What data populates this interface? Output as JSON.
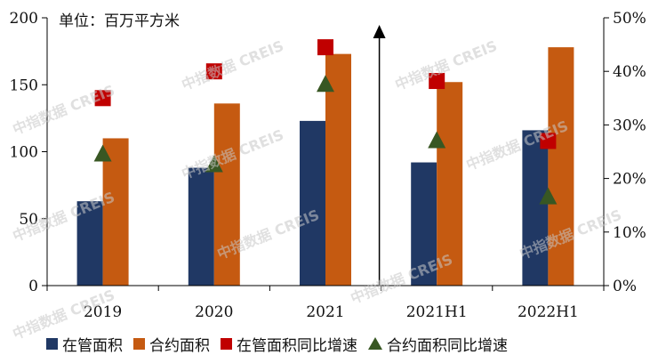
{
  "chart_data": {
    "type": "bar",
    "unit_label": "单位：百万平方米",
    "categories": [
      "2019",
      "2020",
      "2021",
      "2021H1",
      "2022H1"
    ],
    "series": [
      {
        "name": "在管面积",
        "kind": "bar",
        "axis": "left",
        "color": "#203864",
        "values": [
          63,
          88,
          123,
          92,
          116
        ]
      },
      {
        "name": "合约面积",
        "kind": "bar",
        "axis": "left",
        "color": "#C55A11",
        "values": [
          110,
          136,
          173,
          152,
          178
        ]
      },
      {
        "name": "在管面积同比增速",
        "kind": "marker-square",
        "axis": "right",
        "color": "#C00000",
        "values": [
          0.35,
          0.4,
          0.445,
          0.382,
          0.27
        ]
      },
      {
        "name": "合约面积同比增速",
        "kind": "marker-triangle",
        "axis": "right",
        "color": "#385723",
        "values": [
          0.245,
          0.225,
          0.375,
          0.27,
          0.165
        ]
      }
    ],
    "left_axis": {
      "ylim": [
        0,
        200
      ],
      "ticks": [
        "0",
        "50",
        "100",
        "150",
        "200"
      ]
    },
    "right_axis": {
      "ylim": [
        0,
        0.5
      ],
      "ticks": [
        "0%",
        "10%",
        "20%",
        "30%",
        "40%",
        "50%"
      ]
    },
    "watermark": "中指数据 CREIS",
    "legend_position": "bottom"
  }
}
